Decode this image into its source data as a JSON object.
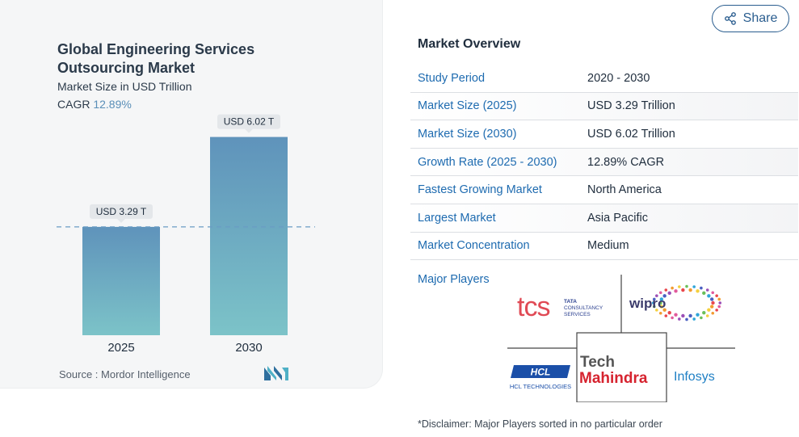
{
  "share": {
    "label": "Share",
    "icon": "share-icon"
  },
  "chart_data": {
    "type": "bar",
    "title": "Global Engineering Services Outsourcing Market",
    "subtitle": "Market Size in USD Trillion",
    "cagr_label": "CAGR",
    "cagr_value": "12.89%",
    "categories": [
      "2025",
      "2030"
    ],
    "values": [
      3.29,
      6.02
    ],
    "data_labels": [
      "USD 3.29 T",
      "USD 6.02 T"
    ],
    "ylim": [
      0,
      6.5
    ],
    "reference_line": 3.29,
    "colors": {
      "bar_top": "#5f93bb",
      "bar_bottom": "#7cc3c8",
      "ref_line": "#6a9cc4",
      "label_bg": "#e4e7ea"
    },
    "source": "Source :  Mordor Intelligence"
  },
  "overview": {
    "title": "Market Overview",
    "rows": [
      {
        "key": "Study Period",
        "value": "2020 - 2030"
      },
      {
        "key": "Market Size (2025)",
        "value": "USD 3.29 Trillion"
      },
      {
        "key": "Market Size (2030)",
        "value": "USD 6.02 Trillion"
      },
      {
        "key": "Growth Rate (2025 - 2030)",
        "value": "12.89% CAGR"
      },
      {
        "key": "Fastest Growing Market",
        "value": "North America"
      },
      {
        "key": "Largest Market",
        "value": "Asia Pacific"
      },
      {
        "key": "Market Concentration",
        "value": "Medium"
      }
    ]
  },
  "players": {
    "label": "Major Players",
    "logos": {
      "tcs": {
        "word": "tcs",
        "lines": [
          "TATA",
          "CONSULTANCY",
          "SERVICES"
        ]
      },
      "wipro": {
        "word": "wipro"
      },
      "hcl": {
        "word": "HCL",
        "sub": "HCL TECHNOLOGIES"
      },
      "techm": {
        "line1": "Tech",
        "line2": "Mahindra"
      },
      "infosys": {
        "word": "Infosys"
      }
    }
  },
  "disclaimer": "*Disclaimer: Major Players sorted in no particular order"
}
